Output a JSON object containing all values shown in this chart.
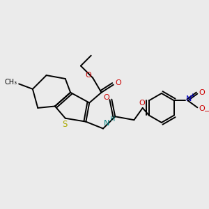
{
  "bg_color": "#ebebeb",
  "bond_color": "#000000",
  "bond_lw": 1.4,
  "atom_colors": {
    "O": "#cc0000",
    "S": "#aaaa00",
    "N_amide": "#008080",
    "N_nitro": "#0000cc",
    "O_nitro": "#cc0000",
    "C": "#000000"
  },
  "figsize": [
    3.0,
    3.0
  ],
  "dpi": 100,
  "xlim": [
    0,
    12
  ],
  "ylim": [
    0,
    12
  ]
}
